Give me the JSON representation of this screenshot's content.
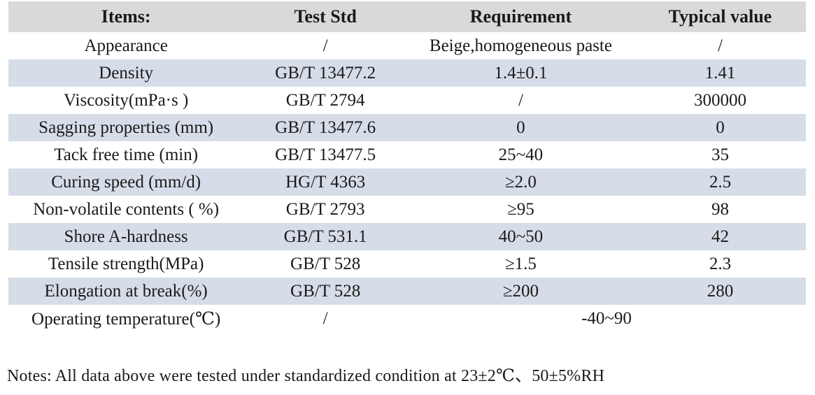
{
  "table": {
    "columns": [
      "Items:",
      "Test Std",
      "Requirement",
      "Typical value"
    ],
    "rows": [
      {
        "item": "Appearance",
        "std": "/",
        "req": "Beige,homogeneous paste",
        "typ": "/"
      },
      {
        "item": "Density",
        "std": "GB/T 13477.2",
        "req": "1.4±0.1",
        "typ": "1.41"
      },
      {
        "item": "Viscosity(mPa·s )",
        "std": "GB/T 2794",
        "req": "/",
        "typ": "300000"
      },
      {
        "item": "Sagging properties (mm)",
        "std": "GB/T 13477.6",
        "req": "0",
        "typ": "0"
      },
      {
        "item": "Tack free time (min)",
        "std": "GB/T 13477.5",
        "req": "25~40",
        "typ": "35"
      },
      {
        "item": "Curing speed (mm/d)",
        "std": "HG/T 4363",
        "req": "≥2.0",
        "typ": "2.5"
      },
      {
        "item": "Non-volatile contents ( %)",
        "std": "GB/T 2793",
        "req": "≥95",
        "typ": "98"
      },
      {
        "item": "Shore A-hardness",
        "std": "GB/T 531.1",
        "req": "40~50",
        "typ": "42"
      },
      {
        "item": "Tensile strength(MPa)",
        "std": "GB/T 528",
        "req": "≥1.5",
        "typ": "2.3"
      },
      {
        "item": "Elongation at break(%)",
        "std": "GB/T 528",
        "req": "≥200",
        "typ": "280"
      },
      {
        "item": "Operating temperature(℃)",
        "std": "/",
        "req": "-40~90",
        "typ": null,
        "req_colspan": 2
      }
    ]
  },
  "note": "Notes: All data above were tested under standardized condition at 23±2℃、50±5%RH",
  "colors": {
    "header_bg": "#d9d9d9",
    "stripe_bg": "#d6dde8"
  }
}
